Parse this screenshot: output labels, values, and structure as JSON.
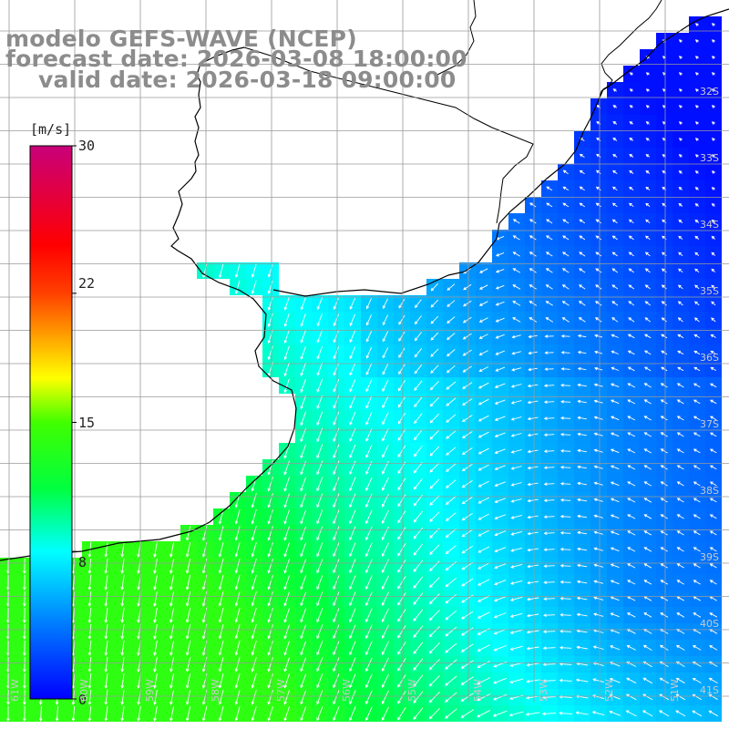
{
  "title": {
    "line1": "modelo GEFS-WAVE (NCEP)",
    "line2": "forecast date: 2026-03-08 18:00:00",
    "line3": "valid date: 2026-03-18 09:00:00"
  },
  "colorbar": {
    "unit": "[m/s]",
    "ticks": [
      "30",
      "22",
      "15",
      "8",
      "0"
    ],
    "tick_values": [
      30,
      22,
      15,
      8,
      0
    ],
    "range": [
      0,
      30
    ],
    "colors": [
      "#0000ff",
      "#00ffff",
      "#00ff00",
      "#ffff00",
      "#ff0000",
      "#c8007a"
    ]
  },
  "axes": {
    "lat_labels": [
      "32S",
      "33S",
      "34S",
      "35S",
      "36S",
      "37S",
      "38S",
      "39S",
      "40S",
      "41S"
    ],
    "lon_labels": [
      "61W",
      "60W",
      "59W",
      "58W",
      "57W",
      "56W",
      "55W",
      "54W",
      "53W",
      "52W",
      "51W"
    ]
  },
  "map": {
    "field": "wind speed and direction",
    "grid": true,
    "land_color": "#ffffff",
    "coastline_color": "#000000",
    "gridline_color": "#9a9a9a",
    "arrow_color": "#ffffff"
  }
}
